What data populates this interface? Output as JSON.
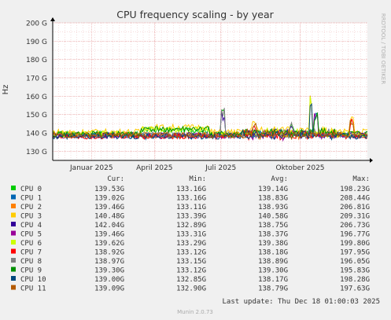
{
  "chart_data": {
    "type": "line",
    "title": "CPU frequency scaling - by year",
    "ylabel": "Hz",
    "ylim": [
      125,
      200
    ],
    "y_ticks": [
      {
        "value": 130,
        "label": "130 G"
      },
      {
        "value": 140,
        "label": "140 G"
      },
      {
        "value": 150,
        "label": "150 G"
      },
      {
        "value": 160,
        "label": "160 G"
      },
      {
        "value": 170,
        "label": "170 G"
      },
      {
        "value": 180,
        "label": "180 G"
      },
      {
        "value": 190,
        "label": "190 G"
      },
      {
        "value": 200,
        "label": "200 G"
      }
    ],
    "xlim": [
      "2024-12-18",
      "2025-12-18"
    ],
    "x_ticks": [
      {
        "date": "2025-02-01",
        "label": "Januar 2025"
      },
      {
        "date": "2025-04-15",
        "label": "April 2025"
      },
      {
        "date": "2025-07-01",
        "label": "Juli 2025"
      },
      {
        "date": "2025-10-01",
        "label": "Oktober 2025"
      }
    ],
    "grid": true,
    "side_label": "RRDTOOL / TOBI OETIKER",
    "columns": [
      "Cur:",
      "Min:",
      "Avg:",
      "Max:"
    ],
    "series": [
      {
        "name": "CPU 0",
        "color": "#00cc00",
        "cur": "139.53G",
        "min": "133.16G",
        "avg": "139.14G",
        "max": "198.23G"
      },
      {
        "name": "CPU 1",
        "color": "#0066b3",
        "cur": "139.02G",
        "min": "133.16G",
        "avg": "138.83G",
        "max": "208.44G"
      },
      {
        "name": "CPU 2",
        "color": "#ff8000",
        "cur": "139.46G",
        "min": "133.11G",
        "avg": "138.93G",
        "max": "206.81G"
      },
      {
        "name": "CPU 3",
        "color": "#ffcc00",
        "cur": "140.48G",
        "min": "133.39G",
        "avg": "140.58G",
        "max": "209.31G"
      },
      {
        "name": "CPU 4",
        "color": "#330099",
        "cur": "142.04G",
        "min": "132.89G",
        "avg": "138.75G",
        "max": "206.73G"
      },
      {
        "name": "CPU 5",
        "color": "#990099",
        "cur": "139.46G",
        "min": "133.31G",
        "avg": "138.37G",
        "max": "196.77G"
      },
      {
        "name": "CPU 6",
        "color": "#ccff00",
        "cur": "139.62G",
        "min": "133.29G",
        "avg": "139.38G",
        "max": "199.80G"
      },
      {
        "name": "CPU 7",
        "color": "#ff0000",
        "cur": "138.92G",
        "min": "133.12G",
        "avg": "138.18G",
        "max": "197.95G"
      },
      {
        "name": "CPU 8",
        "color": "#808080",
        "cur": "138.97G",
        "min": "133.15G",
        "avg": "138.89G",
        "max": "196.05G"
      },
      {
        "name": "CPU 9",
        "color": "#008f00",
        "cur": "139.30G",
        "min": "133.12G",
        "avg": "139.30G",
        "max": "195.83G"
      },
      {
        "name": "CPU 10",
        "color": "#00487d",
        "cur": "139.00G",
        "min": "132.85G",
        "avg": "138.17G",
        "max": "198.28G"
      },
      {
        "name": "CPU 11",
        "color": "#b35a00",
        "cur": "139.09G",
        "min": "132.90G",
        "avg": "138.79G",
        "max": "197.63G"
      }
    ],
    "last_update": "Last update: Thu Dec 18 01:00:03 2025",
    "footer": "Munin 2.0.73"
  }
}
